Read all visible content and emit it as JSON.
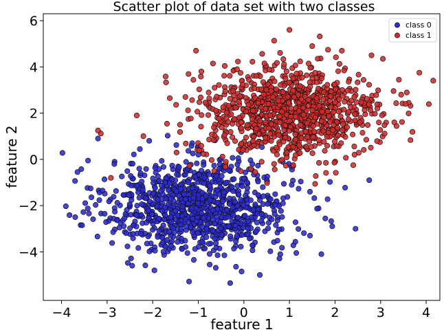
{
  "chart_data": {
    "type": "scatter",
    "title": "Scatter plot of data set with two classes",
    "xlabel": "feature 1",
    "ylabel": "feature 2",
    "xlim": [
      -4.4,
      4.3
    ],
    "ylim": [
      -6.1,
      6.3
    ],
    "xticks": [
      -4,
      -3,
      -2,
      -1,
      0,
      1,
      2,
      3,
      4
    ],
    "yticks": [
      -4,
      -2,
      0,
      2,
      4,
      6
    ],
    "xtick_labels": [
      "−4",
      "−3",
      "−2",
      "−1",
      "0",
      "1",
      "2",
      "3",
      "4"
    ],
    "ytick_labels": [
      "−4",
      "−2",
      "0",
      "2",
      "4",
      "6"
    ],
    "grid": false,
    "legend_position": "top-right",
    "series": [
      {
        "name": "class 0",
        "color": "#2a2ad6",
        "center": [
          -1.0,
          -2.0
        ],
        "spread": [
          1.0,
          1.0
        ],
        "count": 1000,
        "points": [
          [
            -3.98,
            0.28
          ],
          [
            -3.7,
            -2.5
          ],
          [
            -3.65,
            -0.55
          ],
          [
            -3.2,
            0.9
          ],
          [
            -2.45,
            -4.6
          ],
          [
            -1.95,
            -3.95
          ],
          [
            -0.75,
            -4.55
          ],
          [
            -0.3,
            -5.35
          ],
          [
            -0.05,
            -4.85
          ],
          [
            0.35,
            -5.0
          ],
          [
            0.8,
            -4.1
          ],
          [
            1.15,
            -4.05
          ],
          [
            1.7,
            -4.1
          ],
          [
            1.45,
            -3.3
          ],
          [
            1.45,
            -1.4
          ],
          [
            1.05,
            -1.1
          ],
          [
            2.45,
            -3.0
          ],
          [
            2.75,
            -0.9
          ],
          [
            -3.55,
            -2.85
          ],
          [
            -3.1,
            -1.35
          ]
        ]
      },
      {
        "name": "class 1",
        "color": "#d62a2a",
        "center": [
          1.0,
          2.0
        ],
        "spread": [
          1.0,
          1.0
        ],
        "count": 1000,
        "points": [
          [
            -3.2,
            1.25
          ],
          [
            -2.35,
            1.9
          ],
          [
            -1.05,
            4.7
          ],
          [
            0.45,
            4.15
          ],
          [
            1.0,
            5.6
          ],
          [
            1.5,
            4.9
          ],
          [
            2.8,
            4.5
          ],
          [
            2.15,
            4.7
          ],
          [
            3.85,
            3.75
          ],
          [
            3.45,
            2.8
          ],
          [
            2.4,
            -0.25
          ],
          [
            1.8,
            -0.15
          ],
          [
            0.25,
            -0.55
          ],
          [
            -0.65,
            -0.5
          ],
          [
            3.05,
            4.35
          ],
          [
            3.3,
            1.6
          ],
          [
            -1.4,
            1.5
          ],
          [
            0.6,
            0.8
          ],
          [
            3.55,
            2.4
          ],
          [
            -0.15,
            3.9
          ]
        ]
      }
    ]
  }
}
